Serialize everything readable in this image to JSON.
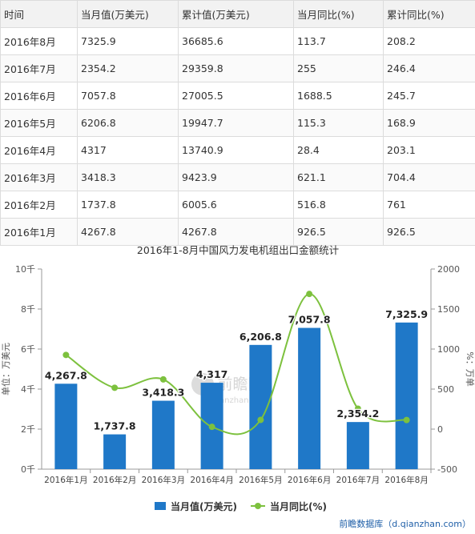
{
  "table": {
    "headers": [
      "时间",
      "当月值(万美元)",
      "累计值(万美元)",
      "当月同比(%)",
      "累计同比(%)"
    ],
    "rows": [
      [
        "2016年8月",
        "7325.9",
        "36685.6",
        "113.7",
        "208.2"
      ],
      [
        "2016年7月",
        "2354.2",
        "29359.8",
        "255",
        "246.4"
      ],
      [
        "2016年6月",
        "7057.8",
        "27005.5",
        "1688.5",
        "245.7"
      ],
      [
        "2016年5月",
        "6206.8",
        "19947.7",
        "115.3",
        "168.9"
      ],
      [
        "2016年4月",
        "4317",
        "13740.9",
        "28.4",
        "203.1"
      ],
      [
        "2016年3月",
        "3418.3",
        "9423.9",
        "621.1",
        "704.4"
      ],
      [
        "2016年2月",
        "1737.8",
        "6005.6",
        "516.8",
        "761"
      ],
      [
        "2016年1月",
        "4267.8",
        "4267.8",
        "926.5",
        "926.5"
      ]
    ]
  },
  "chart_data": {
    "type": "bar",
    "title": "2016年1-8月中国风力发电机组出口金额统计",
    "categories": [
      "2016年1月",
      "2016年2月",
      "2016年3月",
      "2016年4月",
      "2016年5月",
      "2016年6月",
      "2016年7月",
      "2016年8月"
    ],
    "series": [
      {
        "name": "当月值(万美元)",
        "type": "bar",
        "axis": "left",
        "values": [
          4267.8,
          1737.8,
          3418.3,
          4317,
          6206.8,
          7057.8,
          2354.2,
          7325.9
        ],
        "labels": [
          "4,267.8",
          "1,737.8",
          "3,418.3",
          "4,317",
          "6,206.8",
          "7,057.8",
          "2,354.2",
          "7,325.9"
        ],
        "color": "#1f78c8"
      },
      {
        "name": "当月同比(%)",
        "type": "line",
        "axis": "right",
        "values": [
          926.5,
          516.8,
          621.1,
          28.4,
          115.3,
          1688.5,
          255,
          113.7
        ],
        "color": "#7dc13e"
      }
    ],
    "ylabel": "单位：万美元",
    "y2label": "%：万单",
    "ylim": [
      0,
      10000
    ],
    "y2lim": [
      -500,
      2000
    ],
    "yticks": [
      "0千",
      "2千",
      "4千",
      "6千",
      "8千",
      "10千"
    ],
    "y2ticks": [
      "-500",
      "0",
      "500",
      "1000",
      "1500",
      "2000"
    ],
    "legend": "bottom",
    "grid": false
  },
  "watermark": {
    "text": "前瞻网",
    "subtext": "qianzhan.com"
  },
  "source": "前瞻数据库（d.qianzhan.com）"
}
